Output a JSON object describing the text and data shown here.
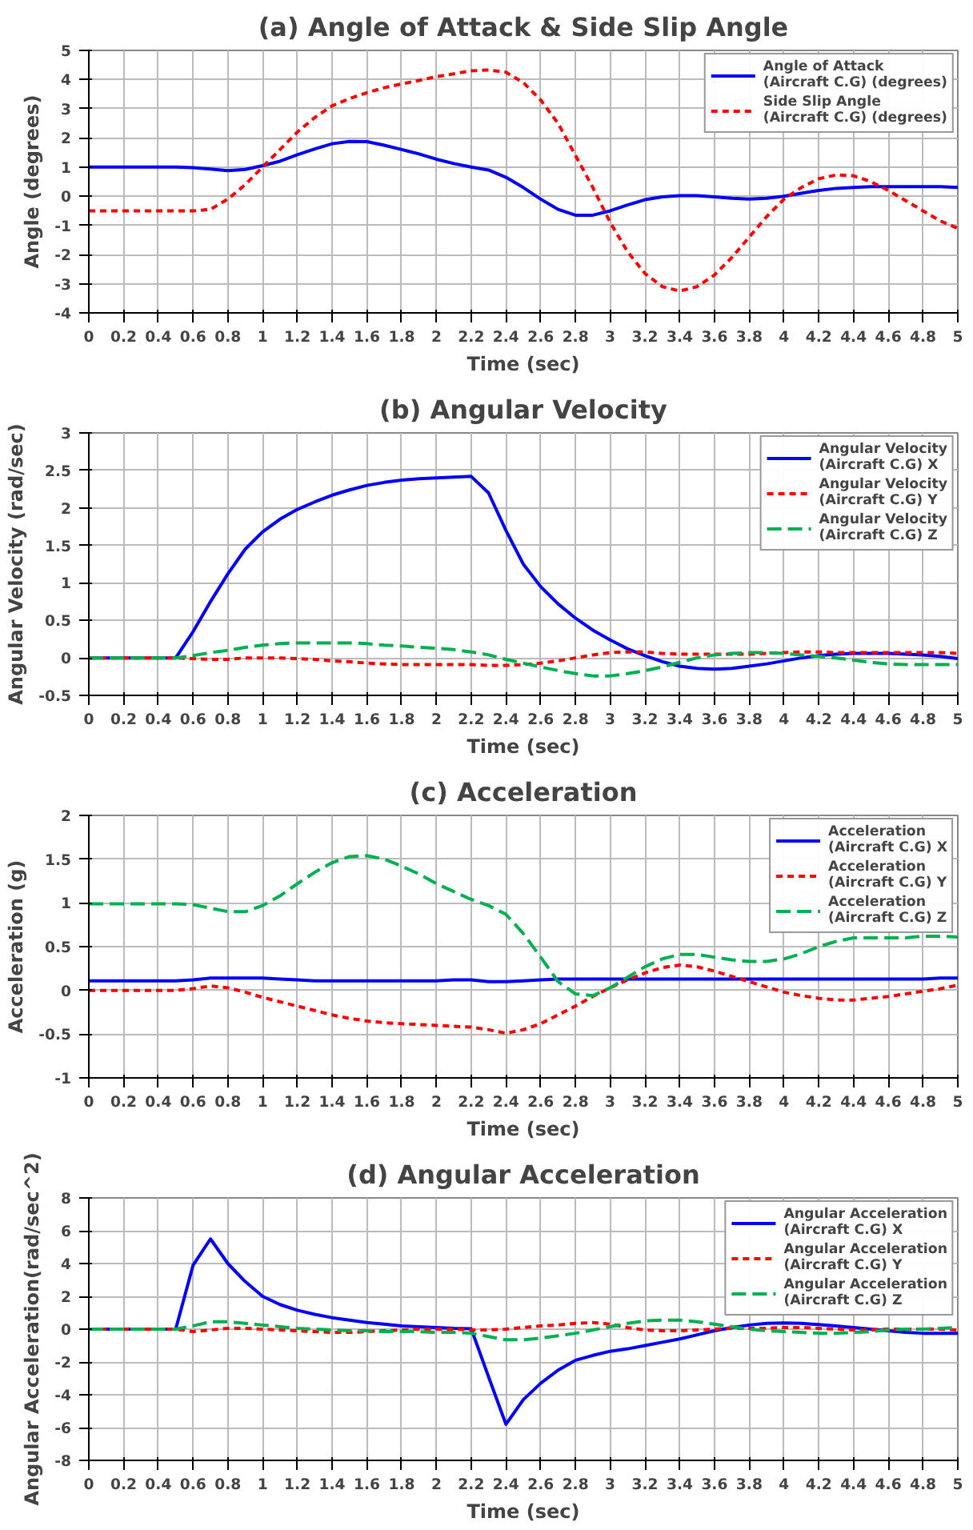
{
  "chart_data": [
    {
      "type": "line",
      "title": "(a) Angle of Attack & Side Slip Angle",
      "xlabel": "Time (sec)",
      "ylabel": "Angle (degrees)",
      "x": [
        0,
        0.1,
        0.2,
        0.3,
        0.4,
        0.5,
        0.6,
        0.7,
        0.8,
        0.9,
        1,
        1.1,
        1.2,
        1.3,
        1.4,
        1.5,
        1.6,
        1.7,
        1.8,
        1.9,
        2,
        2.1,
        2.2,
        2.3,
        2.4,
        2.5,
        2.6,
        2.7,
        2.8,
        2.9,
        3,
        3.1,
        3.2,
        3.3,
        3.4,
        3.5,
        3.6,
        3.7,
        3.8,
        3.9,
        4,
        4.1,
        4.2,
        4.3,
        4.4,
        4.5,
        4.6,
        4.7,
        4.8,
        4.9,
        5
      ],
      "xlim": [
        0,
        5
      ],
      "xticks": [
        0,
        0.2,
        0.4,
        0.6,
        0.8,
        1,
        1.2,
        1.4,
        1.6,
        1.8,
        2,
        2.2,
        2.4,
        2.6,
        2.8,
        3,
        3.2,
        3.4,
        3.6,
        3.8,
        4,
        4.2,
        4.4,
        4.6,
        4.8,
        5
      ],
      "ylim": [
        -4,
        5
      ],
      "yticks": [
        -4,
        -3,
        -2,
        -1,
        0,
        1,
        2,
        3,
        4,
        5
      ],
      "grid": true,
      "legend": "top right",
      "series": [
        {
          "name": "Angle of Attack\n(Aircraft C.G) (degrees)",
          "color": "#0000ff",
          "line_style": "solid",
          "values": [
            1,
            1,
            1,
            1,
            1,
            1,
            0.98,
            0.93,
            0.88,
            0.92,
            1.05,
            1.2,
            1.42,
            1.62,
            1.8,
            1.88,
            1.87,
            1.75,
            1.6,
            1.45,
            1.27,
            1.12,
            1,
            0.9,
            0.65,
            0.3,
            -0.1,
            -0.45,
            -0.65,
            -0.65,
            -0.5,
            -0.3,
            -0.12,
            -0.02,
            0.02,
            0.02,
            -0.02,
            -0.07,
            -0.1,
            -0.07,
            0,
            0.1,
            0.2,
            0.27,
            0.3,
            0.33,
            0.33,
            0.33,
            0.33,
            0.33,
            0.3
          ]
        },
        {
          "name": "Side Slip Angle\n(Aircraft C.G) (degrees)",
          "color": "#ff0000",
          "line_style": "dashed",
          "values": [
            -0.5,
            -0.5,
            -0.5,
            -0.5,
            -0.5,
            -0.5,
            -0.5,
            -0.45,
            -0.1,
            0.4,
            1,
            1.6,
            2.2,
            2.7,
            3.1,
            3.35,
            3.55,
            3.72,
            3.85,
            3.97,
            4.1,
            4.2,
            4.3,
            4.33,
            4.25,
            3.9,
            3.3,
            2.5,
            1.4,
            0.3,
            -0.9,
            -1.9,
            -2.65,
            -3.1,
            -3.25,
            -3.1,
            -2.7,
            -2.1,
            -1.4,
            -0.7,
            -0.1,
            0.3,
            0.6,
            0.73,
            0.7,
            0.5,
            0.2,
            -0.15,
            -0.5,
            -0.85,
            -1.1
          ]
        }
      ]
    },
    {
      "type": "line",
      "title": "(b) Angular Velocity",
      "xlabel": "Time (sec)",
      "ylabel": "Angular Velocity (rad/sec)",
      "x": [
        0,
        0.1,
        0.2,
        0.3,
        0.4,
        0.5,
        0.6,
        0.7,
        0.8,
        0.9,
        1,
        1.1,
        1.2,
        1.3,
        1.4,
        1.5,
        1.6,
        1.7,
        1.8,
        1.9,
        2,
        2.1,
        2.2,
        2.3,
        2.4,
        2.5,
        2.6,
        2.7,
        2.8,
        2.9,
        3,
        3.1,
        3.2,
        3.3,
        3.4,
        3.5,
        3.6,
        3.7,
        3.8,
        3.9,
        4,
        4.1,
        4.2,
        4.3,
        4.4,
        4.5,
        4.6,
        4.7,
        4.8,
        4.9,
        5
      ],
      "xlim": [
        0,
        5
      ],
      "xticks": [
        0,
        0.2,
        0.4,
        0.6,
        0.8,
        1,
        1.2,
        1.4,
        1.6,
        1.8,
        2,
        2.2,
        2.4,
        2.6,
        2.8,
        3,
        3.2,
        3.4,
        3.6,
        3.8,
        4,
        4.2,
        4.4,
        4.6,
        4.8,
        5
      ],
      "ylim": [
        -0.5,
        3
      ],
      "yticks": [
        -0.5,
        0,
        0.5,
        1,
        1.5,
        2,
        2.5,
        3
      ],
      "grid": true,
      "legend": "top right",
      "series": [
        {
          "name": "Angular Velocity\n(Aircraft C.G) X",
          "color": "#0000ff",
          "line_style": "solid",
          "values": [
            0,
            0,
            0,
            0,
            0,
            0,
            0.35,
            0.75,
            1.12,
            1.45,
            1.68,
            1.85,
            1.98,
            2.08,
            2.17,
            2.24,
            2.3,
            2.34,
            2.37,
            2.39,
            2.4,
            2.41,
            2.42,
            2.2,
            1.7,
            1.25,
            0.95,
            0.72,
            0.53,
            0.37,
            0.24,
            0.12,
            0.03,
            -0.05,
            -0.11,
            -0.14,
            -0.15,
            -0.14,
            -0.11,
            -0.08,
            -0.04,
            0,
            0.03,
            0.05,
            0.06,
            0.06,
            0.06,
            0.05,
            0.04,
            0.02,
            -0.01
          ]
        },
        {
          "name": "Angular Velocity\n(Aircraft C.G) Y",
          "color": "#ff0000",
          "line_style": "dashed",
          "values": [
            0,
            0,
            0,
            0,
            0,
            0,
            -0.01,
            -0.02,
            -0.02,
            0,
            0,
            0,
            -0.01,
            -0.02,
            -0.04,
            -0.05,
            -0.07,
            -0.08,
            -0.09,
            -0.09,
            -0.09,
            -0.09,
            -0.09,
            -0.1,
            -0.1,
            -0.09,
            -0.07,
            -0.04,
            0,
            0.04,
            0.07,
            0.08,
            0.08,
            0.06,
            0.05,
            0.05,
            0.05,
            0.05,
            0.05,
            0.06,
            0.07,
            0.08,
            0.08,
            0.07,
            0.07,
            0.07,
            0.07,
            0.07,
            0.07,
            0.07,
            0.06
          ]
        },
        {
          "name": "Angular Velocity\n(Aircraft C.G) Z",
          "color": "#00b050",
          "line_style": "dashed",
          "values": [
            0,
            0,
            0,
            0,
            0,
            0,
            0.03,
            0.07,
            0.1,
            0.14,
            0.17,
            0.19,
            0.2,
            0.2,
            0.2,
            0.2,
            0.19,
            0.17,
            0.16,
            0.14,
            0.13,
            0.11,
            0.08,
            0.04,
            -0.02,
            -0.07,
            -0.12,
            -0.17,
            -0.21,
            -0.24,
            -0.24,
            -0.21,
            -0.17,
            -0.12,
            -0.06,
            0,
            0.04,
            0.06,
            0.07,
            0.07,
            0.06,
            0.04,
            0.02,
            0,
            -0.03,
            -0.06,
            -0.08,
            -0.09,
            -0.09,
            -0.09,
            -0.09
          ]
        }
      ]
    },
    {
      "type": "line",
      "title": "(c) Acceleration",
      "xlabel": "Time (sec)",
      "ylabel": "Acceleration (g)",
      "x": [
        0,
        0.1,
        0.2,
        0.3,
        0.4,
        0.5,
        0.6,
        0.7,
        0.8,
        0.9,
        1,
        1.1,
        1.2,
        1.3,
        1.4,
        1.5,
        1.6,
        1.7,
        1.8,
        1.9,
        2,
        2.1,
        2.2,
        2.3,
        2.4,
        2.5,
        2.6,
        2.7,
        2.8,
        2.9,
        3,
        3.1,
        3.2,
        3.3,
        3.4,
        3.5,
        3.6,
        3.7,
        3.8,
        3.9,
        4,
        4.1,
        4.2,
        4.3,
        4.4,
        4.5,
        4.6,
        4.7,
        4.8,
        4.9,
        5
      ],
      "xlim": [
        0,
        5
      ],
      "xticks": [
        0,
        0.2,
        0.4,
        0.6,
        0.8,
        1,
        1.2,
        1.4,
        1.6,
        1.8,
        2,
        2.2,
        2.4,
        2.6,
        2.8,
        3,
        3.2,
        3.4,
        3.6,
        3.8,
        4,
        4.2,
        4.4,
        4.6,
        4.8,
        5
      ],
      "ylim": [
        -1,
        2
      ],
      "yticks": [
        -1,
        -0.5,
        0,
        0.5,
        1,
        1.5,
        2
      ],
      "grid": true,
      "legend": "top right",
      "series": [
        {
          "name": "Acceleration\n(Aircraft C.G) X",
          "color": "#0000ff",
          "line_style": "solid",
          "values": [
            0.11,
            0.11,
            0.11,
            0.11,
            0.11,
            0.11,
            0.12,
            0.14,
            0.14,
            0.14,
            0.14,
            0.13,
            0.12,
            0.11,
            0.11,
            0.11,
            0.11,
            0.11,
            0.11,
            0.11,
            0.11,
            0.12,
            0.12,
            0.1,
            0.1,
            0.11,
            0.12,
            0.13,
            0.13,
            0.13,
            0.13,
            0.13,
            0.13,
            0.13,
            0.13,
            0.13,
            0.13,
            0.13,
            0.13,
            0.13,
            0.13,
            0.13,
            0.13,
            0.13,
            0.13,
            0.13,
            0.13,
            0.13,
            0.13,
            0.14,
            0.14
          ]
        },
        {
          "name": "Acceleration\n(Aircraft C.G) Y",
          "color": "#ff0000",
          "line_style": "dashed",
          "values": [
            0,
            0,
            0,
            0,
            0,
            0,
            0.02,
            0.05,
            0.03,
            -0.02,
            -0.08,
            -0.13,
            -0.18,
            -0.23,
            -0.28,
            -0.32,
            -0.35,
            -0.37,
            -0.38,
            -0.39,
            -0.4,
            -0.41,
            -0.42,
            -0.45,
            -0.49,
            -0.45,
            -0.38,
            -0.28,
            -0.18,
            -0.07,
            0.03,
            0.12,
            0.2,
            0.26,
            0.29,
            0.27,
            0.22,
            0.16,
            0.1,
            0.04,
            -0.02,
            -0.06,
            -0.09,
            -0.11,
            -0.11,
            -0.09,
            -0.07,
            -0.04,
            -0.01,
            0.02,
            0.06
          ]
        },
        {
          "name": "Acceleration\n(Aircraft C.G) Z",
          "color": "#00b050",
          "line_style": "dashed",
          "values": [
            0.99,
            0.99,
            0.99,
            0.99,
            0.99,
            0.99,
            0.98,
            0.94,
            0.9,
            0.9,
            0.97,
            1.08,
            1.22,
            1.35,
            1.46,
            1.53,
            1.54,
            1.5,
            1.42,
            1.33,
            1.22,
            1.13,
            1.04,
            0.97,
            0.87,
            0.65,
            0.38,
            0.1,
            -0.04,
            -0.06,
            0.03,
            0.15,
            0.27,
            0.36,
            0.41,
            0.41,
            0.38,
            0.35,
            0.33,
            0.33,
            0.36,
            0.42,
            0.5,
            0.56,
            0.6,
            0.6,
            0.6,
            0.6,
            0.62,
            0.62,
            0.61
          ]
        }
      ]
    },
    {
      "type": "line",
      "title": "(d) Angular Acceleration",
      "xlabel": "Time (sec)",
      "ylabel": "Angular Acceleration(rad/sec^2)",
      "x": [
        0,
        0.1,
        0.2,
        0.3,
        0.4,
        0.5,
        0.6,
        0.7,
        0.8,
        0.9,
        1,
        1.1,
        1.2,
        1.3,
        1.4,
        1.5,
        1.6,
        1.7,
        1.8,
        1.9,
        2,
        2.1,
        2.2,
        2.3,
        2.4,
        2.5,
        2.6,
        2.7,
        2.8,
        2.9,
        3,
        3.1,
        3.2,
        3.3,
        3.4,
        3.5,
        3.6,
        3.7,
        3.8,
        3.9,
        4,
        4.1,
        4.2,
        4.3,
        4.4,
        4.5,
        4.6,
        4.7,
        4.8,
        4.9,
        5
      ],
      "xlim": [
        0,
        5
      ],
      "xticks": [
        0,
        0.2,
        0.4,
        0.6,
        0.8,
        1,
        1.2,
        1.4,
        1.6,
        1.8,
        2,
        2.2,
        2.4,
        2.6,
        2.8,
        3,
        3.2,
        3.4,
        3.6,
        3.8,
        4,
        4.2,
        4.4,
        4.6,
        4.8,
        5
      ],
      "ylim": [
        -8,
        8
      ],
      "yticks": [
        -8,
        -6,
        -4,
        -2,
        0,
        2,
        4,
        6,
        8
      ],
      "grid": true,
      "legend": "top right",
      "series": [
        {
          "name": "Angular Acceleration\n(Aircraft C.G) X",
          "color": "#0000ff",
          "line_style": "solid",
          "values": [
            0,
            0,
            0,
            0,
            0,
            0,
            3.9,
            5.5,
            4,
            2.9,
            2,
            1.5,
            1.15,
            0.9,
            0.7,
            0.55,
            0.4,
            0.3,
            0.2,
            0.15,
            0.1,
            0.05,
            0.03,
            -2.9,
            -5.8,
            -4.3,
            -3.3,
            -2.5,
            -1.9,
            -1.6,
            -1.35,
            -1.2,
            -1,
            -0.8,
            -0.6,
            -0.35,
            -0.1,
            0.1,
            0.25,
            0.35,
            0.38,
            0.35,
            0.28,
            0.2,
            0.1,
            0,
            -0.1,
            -0.2,
            -0.25,
            -0.25,
            -0.25
          ]
        },
        {
          "name": "Angular Acceleration\n(Aircraft C.G) Y",
          "color": "#ff0000",
          "line_style": "dashed",
          "values": [
            0,
            0,
            0,
            0,
            0,
            0,
            -0.15,
            -0.05,
            0.05,
            0.05,
            0,
            -0.05,
            -0.1,
            -0.15,
            -0.2,
            -0.2,
            -0.15,
            -0.1,
            -0.05,
            0,
            0,
            0,
            -0.05,
            -0.05,
            0,
            0.1,
            0.2,
            0.25,
            0.35,
            0.4,
            0.3,
            0.1,
            -0.05,
            -0.1,
            -0.1,
            -0.05,
            0,
            0.05,
            0.05,
            0.05,
            0.1,
            0.1,
            0.05,
            0,
            -0.05,
            -0.05,
            0,
            0,
            0,
            0,
            -0.05
          ]
        },
        {
          "name": "Angular Acceleration\n(Aircraft C.G) Z",
          "color": "#00b050",
          "line_style": "dashed",
          "values": [
            0,
            0,
            0,
            0,
            0,
            0,
            0.2,
            0.45,
            0.45,
            0.35,
            0.25,
            0.15,
            0.05,
            0,
            -0.05,
            -0.1,
            -0.1,
            -0.15,
            -0.15,
            -0.15,
            -0.2,
            -0.2,
            -0.25,
            -0.45,
            -0.65,
            -0.65,
            -0.55,
            -0.4,
            -0.25,
            -0.05,
            0.15,
            0.35,
            0.5,
            0.55,
            0.55,
            0.45,
            0.3,
            0.15,
            0,
            -0.1,
            -0.15,
            -0.2,
            -0.25,
            -0.25,
            -0.2,
            -0.15,
            -0.05,
            0,
            0,
            0.05,
            0.1
          ]
        }
      ]
    }
  ]
}
